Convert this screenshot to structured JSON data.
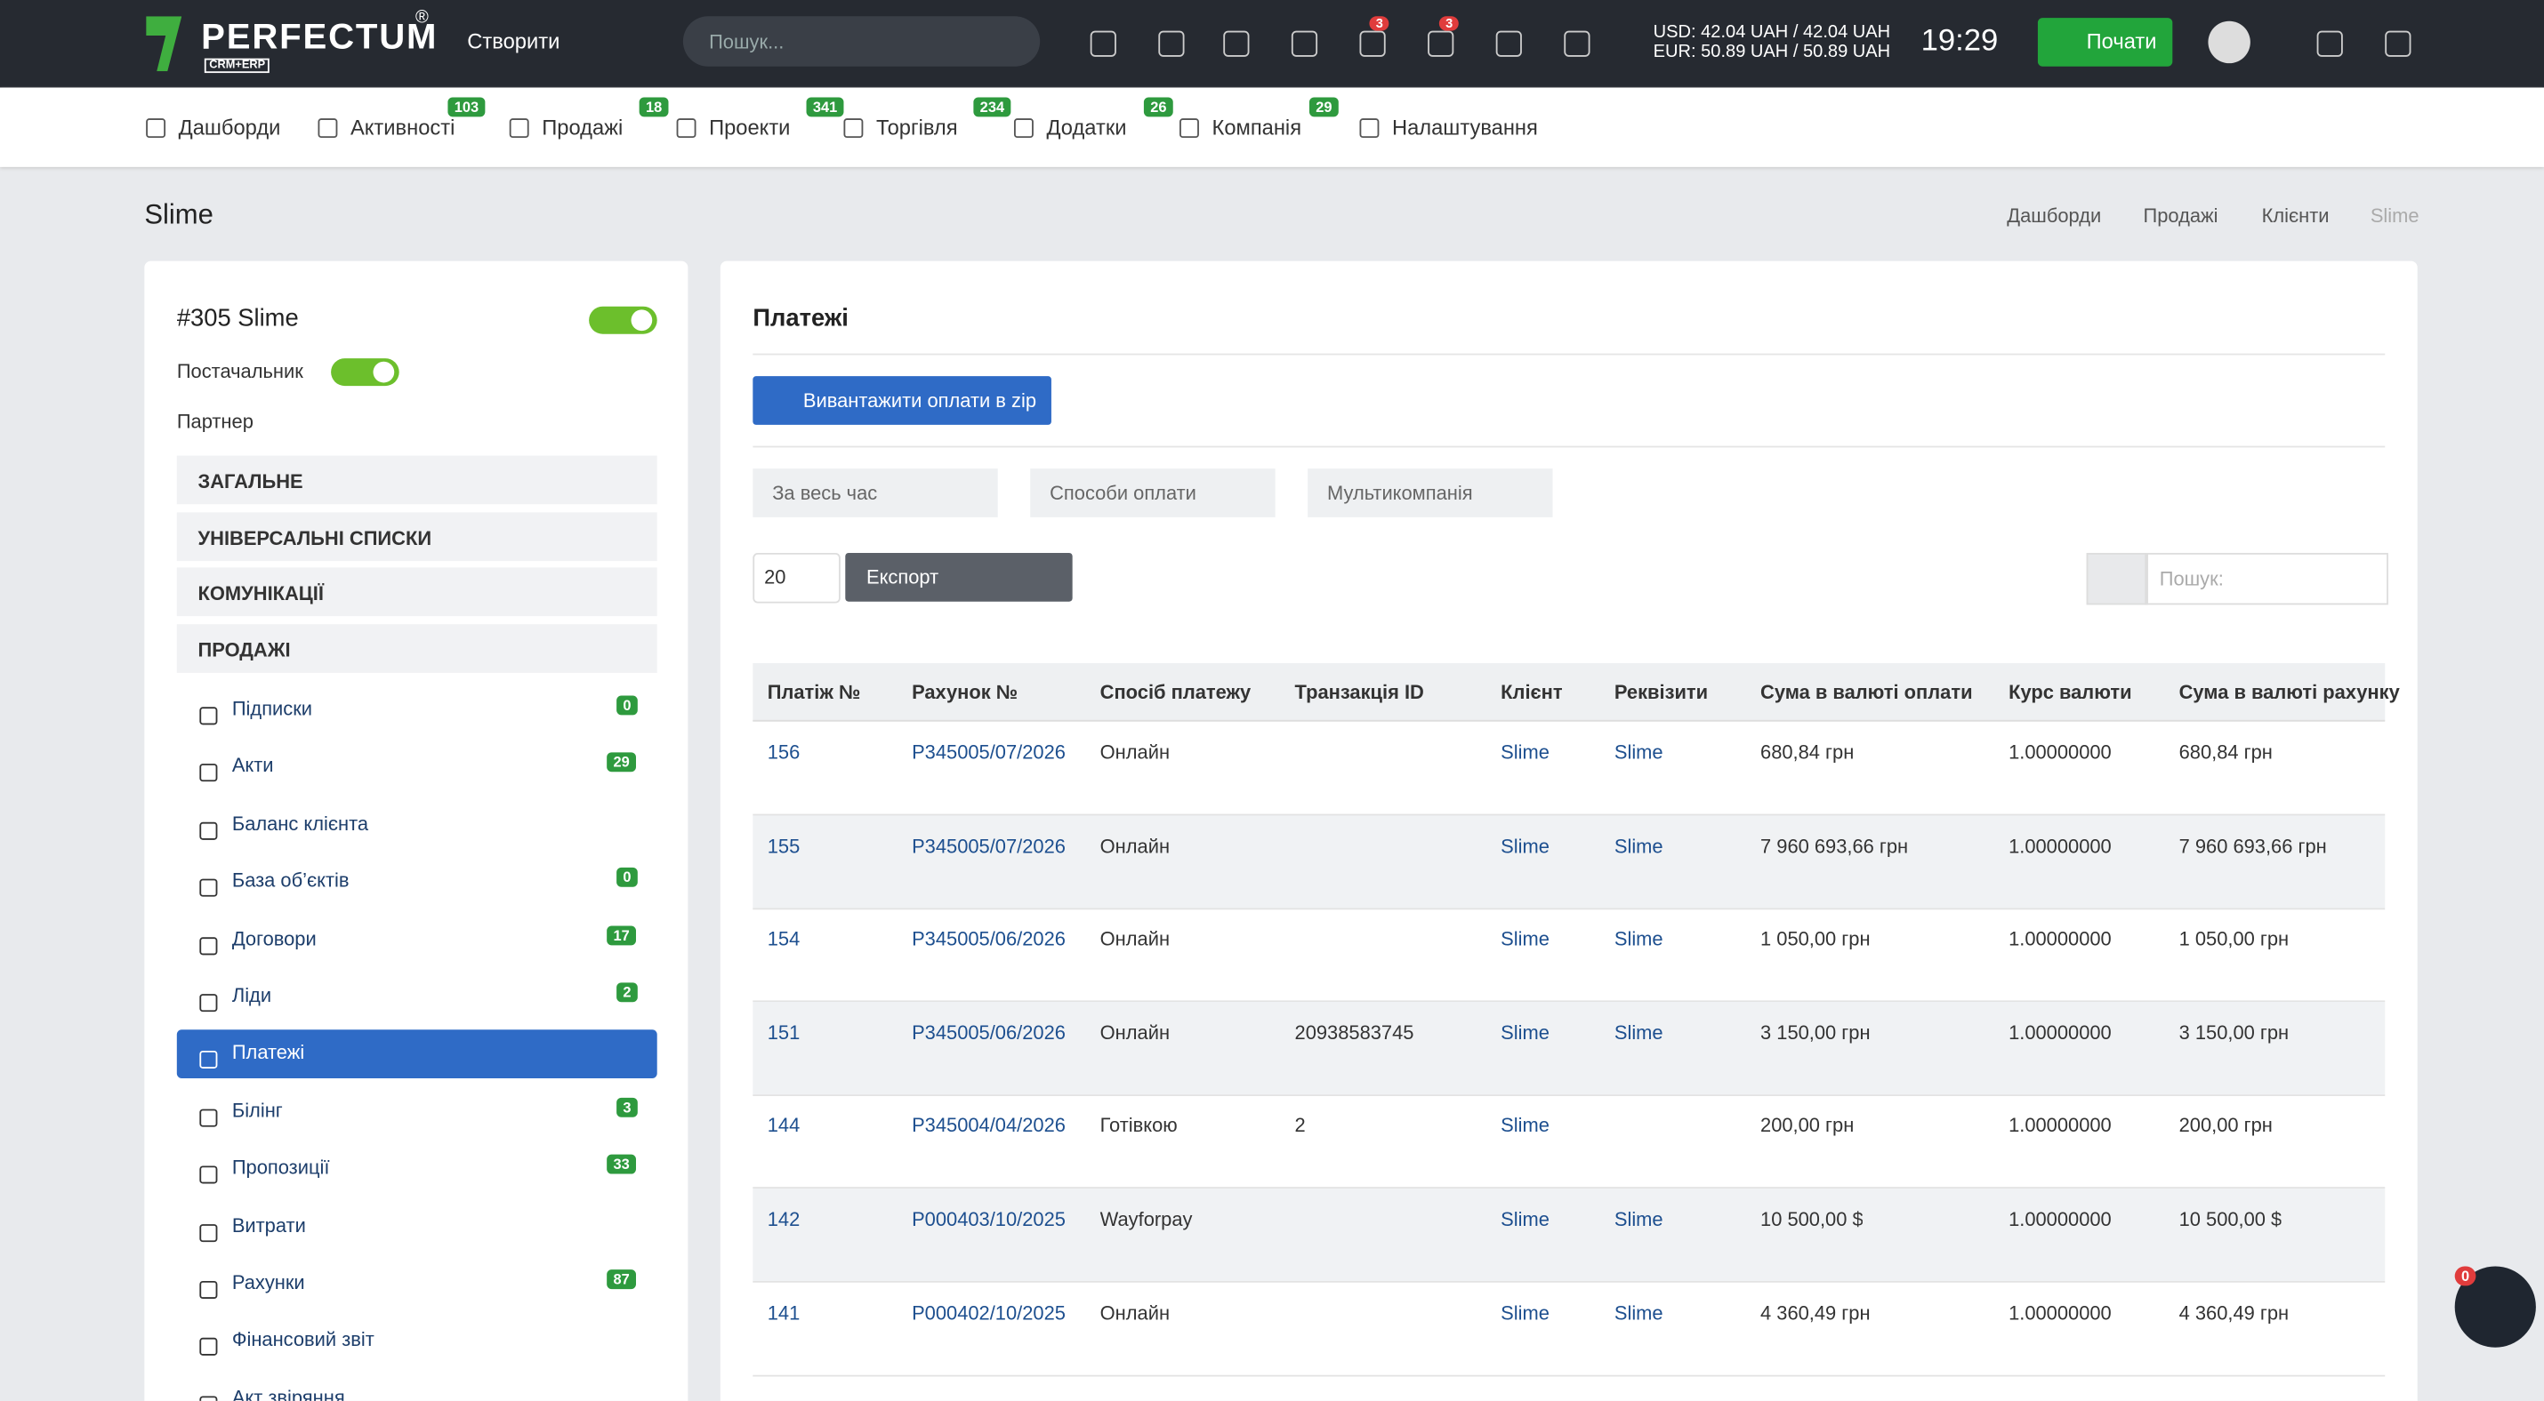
{
  "topbar": {
    "logo": "PERFECTUM",
    "logo_sub": "CRM+ERP",
    "logo_mark": "®",
    "create": "Створити",
    "search": "Пошук...",
    "badges": [
      3,
      3
    ],
    "usd": "USD: 42.04 UAH / 42.04 UAH",
    "eur": "EUR: 50.89 UAH / 50.89 UAH",
    "time": "19:29",
    "start": "Почати"
  },
  "nav": [
    {
      "label": "Дашборди"
    },
    {
      "label": "Активності",
      "badge": 103
    },
    {
      "label": "Продажі",
      "badge": 18
    },
    {
      "label": "Проекти",
      "badge": 341
    },
    {
      "label": "Торгівля",
      "badge": 234
    },
    {
      "label": "Додатки",
      "badge": 26
    },
    {
      "label": "Компанія",
      "badge": 29
    },
    {
      "label": "Налаштування"
    }
  ],
  "page": {
    "title": "Slime",
    "breadcrumbs": [
      "Дашборди",
      "Продажі",
      "Клієнти",
      "Slime"
    ]
  },
  "sidebar": {
    "client": "#305 Slime",
    "supplier": "Постачальник",
    "partner": "Партнер",
    "sections": [
      "ЗАГАЛЬНЕ",
      "УНІВЕРСАЛЬНІ СПИСКИ",
      "КОМУНІКАЦІЇ",
      "ПРОДАЖІ"
    ],
    "items": [
      {
        "label": "Підписки",
        "badge": 0
      },
      {
        "label": "Акти",
        "badge": 29
      },
      {
        "label": "Баланс клієнта"
      },
      {
        "label": "База об’єктів",
        "badge": 0
      },
      {
        "label": "Договори",
        "badge": 17
      },
      {
        "label": "Ліди",
        "badge": 2
      },
      {
        "label": "Платежі",
        "active": true
      },
      {
        "label": "Білінг",
        "badge": 3
      },
      {
        "label": "Пропозиції",
        "badge": 33
      },
      {
        "label": "Витрати"
      },
      {
        "label": "Рахунки",
        "badge": 87
      },
      {
        "label": "Фінансовий звіт"
      },
      {
        "label": "Акт звіряння"
      }
    ]
  },
  "payments": {
    "title": "Платежі",
    "download": "Вивантажити оплати в zip",
    "filters": [
      "За весь час",
      "Способи оплати",
      "Мультикомпанія"
    ],
    "page_size": "20",
    "export": "Експорт",
    "search": "Пошук:",
    "table": {
      "headers": [
        "Платіж №",
        "Рахунок №",
        "Спосіб платежу",
        "Транзакція ID",
        "Клієнт",
        "Реквізити",
        "Сума в валюті оплати",
        "Курс валюти",
        "Сума в валюті рахунку"
      ],
      "rows": [
        [
          "156",
          "P345005/07/2026",
          "Онлайн",
          null,
          "Slime",
          "Slime",
          "680,84 грн",
          "1.00000000",
          "680,84 грн"
        ],
        [
          "155",
          "P345005/07/2026",
          "Онлайн",
          null,
          "Slime",
          "Slime",
          "7 960 693,66 грн",
          "1.00000000",
          "7 960 693,66 грн"
        ],
        [
          "154",
          "P345005/06/2026",
          "Онлайн",
          null,
          "Slime",
          "Slime",
          "1 050,00 грн",
          "1.00000000",
          "1 050,00 грн"
        ],
        [
          "151",
          "P345005/06/2026",
          "Онлайн",
          "20938583745",
          "Slime",
          "Slime",
          "3 150,00 грн",
          "1.00000000",
          "3 150,00 грн"
        ],
        [
          "144",
          "P345004/04/2026",
          "Готівкою",
          "2",
          "Slime",
          null,
          "200,00 грн",
          "1.00000000",
          "200,00 грн"
        ],
        [
          "142",
          "P000403/10/2025",
          "Wayforpay",
          null,
          "Slime",
          "Slime",
          "10 500,00 $",
          "1.00000000",
          "10 500,00 $"
        ],
        [
          "141",
          "P000402/10/2025",
          "Онлайн",
          null,
          "Slime",
          "Slime",
          "4 360,49 грн",
          "1.00000000",
          "4 360,49 грн"
        ]
      ]
    }
  },
  "chat_badge": 0
}
